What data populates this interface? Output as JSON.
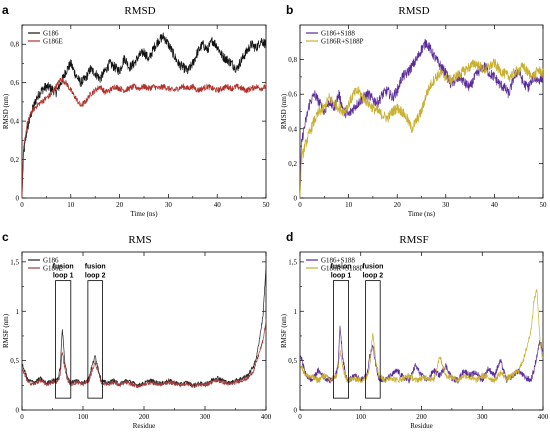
{
  "chart_data": [
    {
      "panel": "a",
      "type": "line",
      "title": "RMSD",
      "xlabel": "Time (ns)",
      "ylabel": "RMSD (nm)",
      "xlim": [
        0,
        50
      ],
      "ylim": [
        0,
        0.9
      ],
      "xticks": [
        0,
        10,
        20,
        30,
        40,
        50
      ],
      "yticks": [
        0,
        0.2,
        0.4,
        0.6,
        0.8
      ],
      "ytick_labels": [
        "0",
        "0,2",
        "0,4",
        "0,6",
        "0,8"
      ],
      "legend_position": "top-left",
      "series": [
        {
          "name": "G186",
          "color": "#111111",
          "noise": 0.025,
          "x": [
            0,
            0.3,
            1,
            2,
            3,
            4,
            5,
            6,
            7,
            8,
            9,
            10,
            11,
            12,
            13,
            14,
            15,
            16,
            17,
            18,
            19,
            20,
            21,
            22,
            23,
            24,
            25,
            26,
            27,
            28,
            29,
            30,
            31,
            32,
            33,
            34,
            35,
            36,
            37,
            38,
            39,
            40,
            41,
            42,
            43,
            44,
            45,
            46,
            47,
            48,
            49,
            50
          ],
          "y": [
            0.0,
            0.22,
            0.35,
            0.45,
            0.52,
            0.56,
            0.58,
            0.57,
            0.55,
            0.6,
            0.66,
            0.7,
            0.64,
            0.6,
            0.62,
            0.67,
            0.65,
            0.62,
            0.66,
            0.7,
            0.68,
            0.66,
            0.73,
            0.68,
            0.7,
            0.74,
            0.76,
            0.72,
            0.78,
            0.82,
            0.84,
            0.8,
            0.75,
            0.7,
            0.68,
            0.66,
            0.7,
            0.76,
            0.8,
            0.77,
            0.82,
            0.79,
            0.74,
            0.72,
            0.7,
            0.67,
            0.72,
            0.76,
            0.8,
            0.78,
            0.82,
            0.8
          ]
        },
        {
          "name": "G186E",
          "color": "#b0302a",
          "noise": 0.015,
          "x": [
            0,
            0.3,
            1,
            2,
            3,
            4,
            5,
            6,
            7,
            8,
            9,
            10,
            11,
            12,
            13,
            14,
            15,
            16,
            17,
            18,
            19,
            20,
            21,
            22,
            23,
            24,
            25,
            26,
            27,
            28,
            29,
            30,
            31,
            32,
            33,
            34,
            35,
            36,
            37,
            38,
            39,
            40,
            41,
            42,
            43,
            44,
            45,
            46,
            47,
            48,
            49,
            50
          ],
          "y": [
            0.0,
            0.25,
            0.38,
            0.45,
            0.48,
            0.5,
            0.52,
            0.54,
            0.58,
            0.62,
            0.6,
            0.56,
            0.52,
            0.48,
            0.5,
            0.54,
            0.56,
            0.58,
            0.55,
            0.56,
            0.58,
            0.57,
            0.56,
            0.57,
            0.58,
            0.57,
            0.58,
            0.57,
            0.58,
            0.57,
            0.58,
            0.57,
            0.56,
            0.57,
            0.58,
            0.57,
            0.58,
            0.56,
            0.57,
            0.58,
            0.57,
            0.56,
            0.57,
            0.58,
            0.57,
            0.58,
            0.57,
            0.56,
            0.57,
            0.58,
            0.57,
            0.58
          ]
        }
      ]
    },
    {
      "panel": "b",
      "type": "line",
      "title": "RMSD",
      "xlabel": "Time (ns)",
      "ylabel": "RMSD (nm)",
      "xlim": [
        0,
        50
      ],
      "ylim": [
        0,
        1.0
      ],
      "xticks": [
        0,
        10,
        20,
        30,
        40,
        50
      ],
      "yticks": [
        0,
        0.2,
        0.4,
        0.6,
        0.8
      ],
      "ytick_labels": [
        "0",
        "0,2",
        "0,4",
        "0,6",
        "0,8"
      ],
      "legend_position": "top-left",
      "series": [
        {
          "name": "G186+S188",
          "color": "#5b2b9a",
          "noise": 0.03,
          "x": [
            0,
            0.3,
            1,
            2,
            3,
            4,
            5,
            6,
            7,
            8,
            9,
            10,
            11,
            12,
            13,
            14,
            15,
            16,
            17,
            18,
            19,
            20,
            21,
            22,
            23,
            24,
            25,
            26,
            27,
            28,
            29,
            30,
            31,
            32,
            33,
            34,
            35,
            36,
            37,
            38,
            39,
            40,
            41,
            42,
            43,
            44,
            45,
            46,
            47,
            48,
            49,
            50
          ],
          "y": [
            0.0,
            0.32,
            0.42,
            0.55,
            0.6,
            0.55,
            0.5,
            0.56,
            0.52,
            0.6,
            0.5,
            0.48,
            0.52,
            0.55,
            0.58,
            0.6,
            0.57,
            0.55,
            0.6,
            0.62,
            0.58,
            0.62,
            0.7,
            0.72,
            0.76,
            0.8,
            0.86,
            0.9,
            0.85,
            0.8,
            0.76,
            0.72,
            0.66,
            0.68,
            0.7,
            0.66,
            0.64,
            0.7,
            0.74,
            0.76,
            0.72,
            0.7,
            0.66,
            0.64,
            0.6,
            0.7,
            0.74,
            0.66,
            0.64,
            0.7,
            0.68,
            0.7
          ]
        },
        {
          "name": "G186R+S188P",
          "color": "#c9b030",
          "noise": 0.03,
          "x": [
            0,
            0.3,
            1,
            2,
            3,
            4,
            5,
            6,
            7,
            8,
            9,
            10,
            11,
            12,
            13,
            14,
            15,
            16,
            17,
            18,
            19,
            20,
            21,
            22,
            23,
            24,
            25,
            26,
            27,
            28,
            29,
            30,
            31,
            32,
            33,
            34,
            35,
            36,
            37,
            38,
            39,
            40,
            41,
            42,
            43,
            44,
            45,
            46,
            47,
            48,
            49,
            50
          ],
          "y": [
            0.0,
            0.22,
            0.3,
            0.38,
            0.45,
            0.5,
            0.52,
            0.58,
            0.55,
            0.52,
            0.5,
            0.54,
            0.6,
            0.62,
            0.58,
            0.55,
            0.52,
            0.5,
            0.48,
            0.46,
            0.5,
            0.52,
            0.5,
            0.46,
            0.4,
            0.45,
            0.5,
            0.6,
            0.66,
            0.7,
            0.72,
            0.7,
            0.68,
            0.7,
            0.72,
            0.74,
            0.76,
            0.78,
            0.76,
            0.74,
            0.76,
            0.78,
            0.74,
            0.72,
            0.7,
            0.72,
            0.74,
            0.76,
            0.72,
            0.7,
            0.74,
            0.72
          ]
        }
      ]
    },
    {
      "panel": "c",
      "type": "line",
      "title": "RMS",
      "xlabel": "Residue",
      "ylabel": "RMSF (nm)",
      "xlim": [
        0,
        400
      ],
      "ylim": [
        0,
        1.6
      ],
      "xticks": [
        0,
        100,
        200,
        300,
        400
      ],
      "yticks": [
        0,
        0.5,
        1,
        1.5
      ],
      "ytick_labels": [
        "0",
        "0,5",
        "1",
        "1,5"
      ],
      "legend_position": "top-left",
      "annotations": [
        {
          "line1": "fusion",
          "line2": "loop 1",
          "x_start": 55,
          "x_end": 80,
          "y_bottom": 0.12,
          "y_top": 1.31
        },
        {
          "line1": "fusion",
          "line2": "loop 2",
          "x_start": 108,
          "x_end": 132,
          "y_bottom": 0.12,
          "y_top": 1.31
        }
      ],
      "series": [
        {
          "name": "G186",
          "color": "#222222",
          "noise": 0.02,
          "x": [
            1,
            10,
            20,
            30,
            40,
            50,
            55,
            60,
            63,
            66,
            70,
            75,
            80,
            90,
            100,
            110,
            115,
            120,
            125,
            130,
            140,
            150,
            160,
            170,
            180,
            190,
            200,
            210,
            220,
            230,
            240,
            250,
            260,
            270,
            280,
            290,
            300,
            310,
            320,
            330,
            340,
            350,
            360,
            370,
            380,
            385,
            390,
            395,
            400
          ],
          "y": [
            0.45,
            0.3,
            0.28,
            0.32,
            0.27,
            0.3,
            0.3,
            0.33,
            0.45,
            0.83,
            0.5,
            0.32,
            0.28,
            0.3,
            0.27,
            0.33,
            0.45,
            0.55,
            0.42,
            0.3,
            0.27,
            0.3,
            0.26,
            0.3,
            0.28,
            0.25,
            0.27,
            0.3,
            0.28,
            0.27,
            0.3,
            0.28,
            0.26,
            0.28,
            0.25,
            0.27,
            0.26,
            0.3,
            0.33,
            0.3,
            0.27,
            0.3,
            0.32,
            0.35,
            0.45,
            0.55,
            0.75,
            0.95,
            1.45
          ]
        },
        {
          "name": "G186E",
          "color": "#a13d3d",
          "noise": 0.02,
          "x": [
            1,
            10,
            20,
            30,
            40,
            50,
            55,
            60,
            63,
            66,
            70,
            75,
            80,
            90,
            100,
            110,
            115,
            120,
            125,
            130,
            140,
            150,
            160,
            170,
            180,
            190,
            200,
            210,
            220,
            230,
            240,
            250,
            260,
            270,
            280,
            290,
            300,
            310,
            320,
            330,
            340,
            350,
            360,
            370,
            380,
            385,
            390,
            395,
            400
          ],
          "y": [
            0.4,
            0.28,
            0.26,
            0.3,
            0.26,
            0.28,
            0.28,
            0.3,
            0.38,
            0.6,
            0.42,
            0.3,
            0.26,
            0.28,
            0.26,
            0.3,
            0.4,
            0.48,
            0.38,
            0.28,
            0.26,
            0.28,
            0.25,
            0.28,
            0.26,
            0.24,
            0.26,
            0.28,
            0.26,
            0.26,
            0.28,
            0.27,
            0.25,
            0.27,
            0.24,
            0.26,
            0.25,
            0.28,
            0.3,
            0.28,
            0.26,
            0.28,
            0.3,
            0.32,
            0.4,
            0.5,
            0.6,
            0.7,
            0.9
          ]
        }
      ]
    },
    {
      "panel": "d",
      "type": "line",
      "title": "RMSF",
      "xlabel": "Residue",
      "ylabel": "RMSF (nm)",
      "xlim": [
        0,
        400
      ],
      "ylim": [
        0,
        1.6
      ],
      "xticks": [
        0,
        100,
        200,
        300,
        400
      ],
      "yticks": [
        0,
        0.5,
        1,
        1.5
      ],
      "ytick_labels": [
        "0",
        "0,5",
        "1",
        "1,5"
      ],
      "legend_position": "top-left",
      "annotations": [
        {
          "line1": "fusion",
          "line2": "loop 1",
          "x_start": 55,
          "x_end": 80,
          "y_bottom": 0.12,
          "y_top": 1.31
        },
        {
          "line1": "fusion",
          "line2": "loop 2",
          "x_start": 108,
          "x_end": 132,
          "y_bottom": 0.12,
          "y_top": 1.31
        }
      ],
      "series": [
        {
          "name": "G186+S188",
          "color": "#5b2b9a",
          "noise": 0.03,
          "x": [
            1,
            10,
            20,
            30,
            40,
            50,
            55,
            60,
            63,
            66,
            70,
            75,
            80,
            90,
            100,
            110,
            115,
            120,
            125,
            130,
            140,
            150,
            160,
            170,
            180,
            190,
            200,
            210,
            220,
            230,
            240,
            250,
            260,
            270,
            280,
            290,
            300,
            310,
            320,
            330,
            340,
            350,
            360,
            370,
            380,
            385,
            390,
            395,
            400
          ],
          "y": [
            0.55,
            0.35,
            0.3,
            0.4,
            0.33,
            0.3,
            0.32,
            0.38,
            0.5,
            0.85,
            0.55,
            0.35,
            0.3,
            0.35,
            0.3,
            0.35,
            0.55,
            0.65,
            0.45,
            0.32,
            0.3,
            0.35,
            0.4,
            0.33,
            0.3,
            0.45,
            0.35,
            0.3,
            0.4,
            0.35,
            0.45,
            0.32,
            0.3,
            0.4,
            0.35,
            0.38,
            0.3,
            0.42,
            0.35,
            0.5,
            0.3,
            0.35,
            0.4,
            0.33,
            0.3,
            0.4,
            0.55,
            0.7,
            0.6
          ]
        },
        {
          "name": "G186R+S188P",
          "color": "#c9b030",
          "noise": 0.03,
          "x": [
            1,
            10,
            20,
            30,
            40,
            50,
            55,
            60,
            63,
            66,
            70,
            75,
            80,
            90,
            100,
            110,
            115,
            120,
            125,
            130,
            140,
            150,
            160,
            170,
            180,
            190,
            200,
            210,
            220,
            230,
            240,
            250,
            260,
            270,
            280,
            290,
            300,
            310,
            320,
            330,
            340,
            350,
            360,
            370,
            380,
            385,
            390,
            395,
            400
          ],
          "y": [
            0.45,
            0.35,
            0.33,
            0.3,
            0.35,
            0.3,
            0.33,
            0.35,
            0.42,
            0.6,
            0.45,
            0.32,
            0.3,
            0.32,
            0.3,
            0.33,
            0.45,
            0.8,
            0.5,
            0.35,
            0.3,
            0.33,
            0.3,
            0.32,
            0.35,
            0.3,
            0.32,
            0.33,
            0.3,
            0.55,
            0.35,
            0.33,
            0.3,
            0.35,
            0.33,
            0.3,
            0.35,
            0.33,
            0.3,
            0.38,
            0.32,
            0.35,
            0.4,
            0.55,
            0.8,
            1.1,
            1.22,
            0.7,
            0.5
          ]
        }
      ]
    }
  ]
}
